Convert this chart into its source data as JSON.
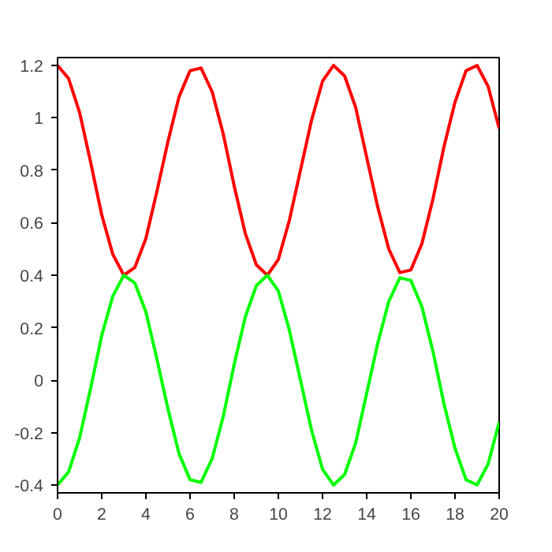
{
  "chart_data": {
    "type": "line",
    "x": [
      0,
      0.5,
      1,
      1.5,
      2,
      2.5,
      3,
      3.5,
      4,
      4.5,
      5,
      5.5,
      6,
      6.5,
      7,
      7.5,
      8,
      8.5,
      9,
      9.5,
      10,
      10.5,
      11,
      11.5,
      12,
      12.5,
      13,
      13.5,
      14,
      14.5,
      15,
      15.5,
      16,
      16.5,
      17,
      17.5,
      18,
      18.5,
      19,
      19.5,
      20
    ],
    "series": [
      {
        "color": "#ff0000",
        "values": [
          1.2,
          1.15,
          1.02,
          0.83,
          0.63,
          0.48,
          0.4,
          0.43,
          0.54,
          0.72,
          0.91,
          1.08,
          1.18,
          1.19,
          1.1,
          0.94,
          0.74,
          0.56,
          0.44,
          0.4,
          0.46,
          0.61,
          0.8,
          0.99,
          1.14,
          1.2,
          1.16,
          1.04,
          0.85,
          0.66,
          0.5,
          0.41,
          0.42,
          0.52,
          0.69,
          0.89,
          1.06,
          1.18,
          1.2,
          1.12,
          0.96
        ]
      },
      {
        "color": "#00ff00",
        "values": [
          -0.4,
          -0.35,
          -0.22,
          -0.03,
          0.17,
          0.32,
          0.4,
          0.37,
          0.26,
          0.08,
          -0.11,
          -0.28,
          -0.38,
          -0.39,
          -0.3,
          -0.14,
          0.06,
          0.24,
          0.36,
          0.4,
          0.34,
          0.19,
          0.0,
          -0.19,
          -0.34,
          -0.4,
          -0.36,
          -0.24,
          -0.05,
          0.14,
          0.3,
          0.39,
          0.38,
          0.28,
          0.11,
          -0.09,
          -0.26,
          -0.38,
          -0.4,
          -0.32,
          -0.16
        ]
      }
    ],
    "xlim": [
      0,
      20
    ],
    "xticks": [
      0,
      2,
      4,
      6,
      8,
      10,
      12,
      14,
      16,
      18,
      20
    ],
    "ylim": [
      -0.43,
      1.23
    ],
    "yticks": [
      -0.4,
      -0.2,
      0,
      0.2,
      0.4,
      0.6,
      0.8,
      1,
      1.2
    ],
    "grid": false,
    "marker": "none",
    "line_style": "solid"
  }
}
